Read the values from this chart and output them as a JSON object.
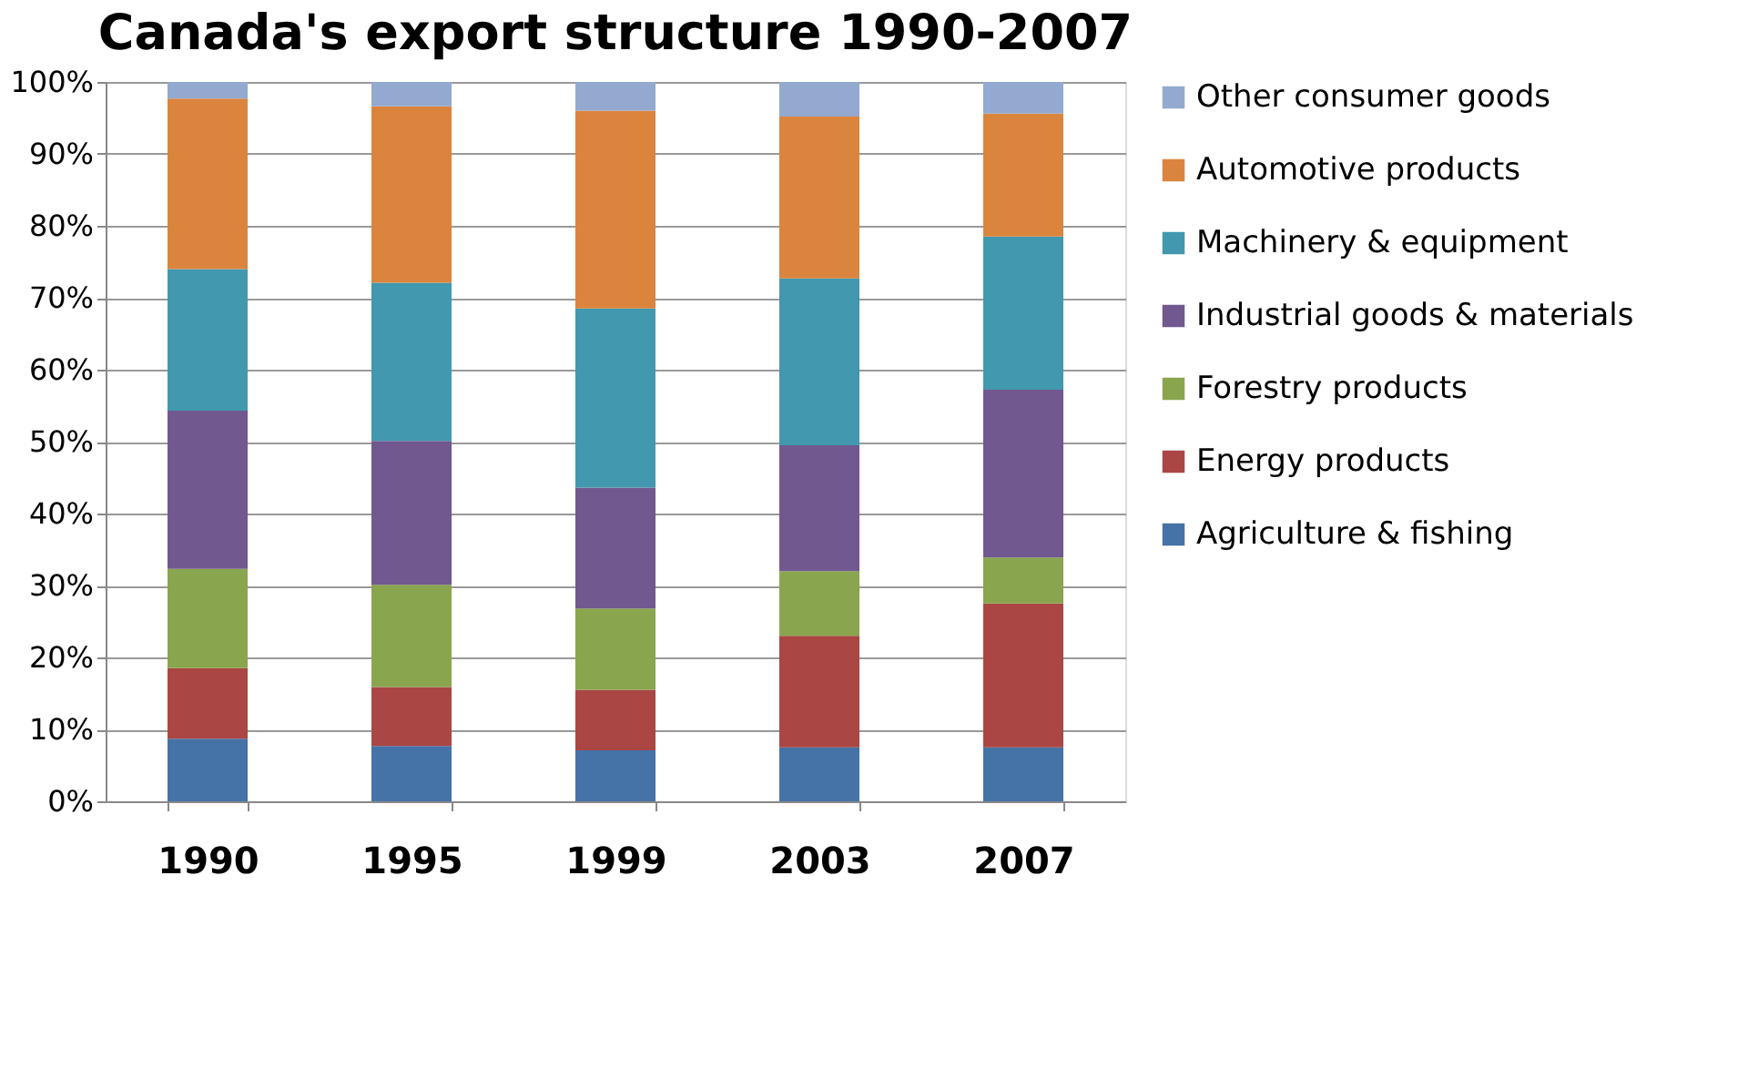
{
  "chart_data": {
    "type": "bar",
    "stacked": true,
    "title": "Canada's export structure 1990-2007",
    "categories": [
      "1990",
      "1995",
      "1999",
      "2003",
      "2007"
    ],
    "series": [
      {
        "name": "Agriculture & fishing",
        "color": "#4572a7",
        "values": [
          8.7,
          7.7,
          7.1,
          7.5,
          7.5
        ]
      },
      {
        "name": "Energy products",
        "color": "#aa4643",
        "values": [
          9.8,
          8.2,
          8.4,
          15.5,
          20.0
        ]
      },
      {
        "name": "Forestry products",
        "color": "#89a54e",
        "values": [
          13.8,
          14.2,
          11.3,
          9.0,
          6.4
        ]
      },
      {
        "name": "Industrial goods & materials",
        "color": "#71588f",
        "values": [
          22.0,
          20.0,
          16.8,
          17.5,
          23.3
        ]
      },
      {
        "name": "Machinery & equipment",
        "color": "#4198af",
        "values": [
          19.7,
          22.0,
          24.9,
          23.2,
          21.3
        ]
      },
      {
        "name": "Automotive products",
        "color": "#db843d",
        "values": [
          23.7,
          24.5,
          27.5,
          22.5,
          17.1
        ]
      },
      {
        "name": "Other consumer goods",
        "color": "#93a9cf",
        "values": [
          2.3,
          3.4,
          4.0,
          4.8,
          4.4
        ]
      }
    ],
    "ylim": [
      0,
      100
    ],
    "yticks": [
      {
        "value": 0,
        "label": "0%"
      },
      {
        "value": 10,
        "label": "10%"
      },
      {
        "value": 20,
        "label": "20%"
      },
      {
        "value": 30,
        "label": "30%"
      },
      {
        "value": 40,
        "label": "40%"
      },
      {
        "value": 50,
        "label": "50%"
      },
      {
        "value": 60,
        "label": "60%"
      },
      {
        "value": 70,
        "label": "70%"
      },
      {
        "value": 80,
        "label": "80%"
      },
      {
        "value": 90,
        "label": "90%"
      },
      {
        "value": 100,
        "label": "100%"
      }
    ],
    "grid": "y",
    "legend": "right"
  }
}
